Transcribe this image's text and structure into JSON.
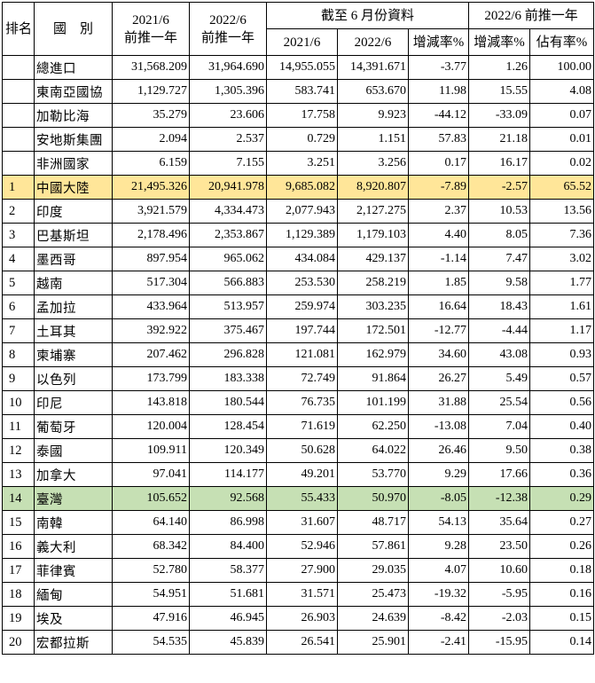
{
  "header": {
    "rank": "排名",
    "country": "國　別",
    "col_2021_line1": "2021/6",
    "col_2021_line2": "前推一年",
    "col_2022_line1": "2022/6",
    "col_2022_line2": "前推一年",
    "group_ytd": "截至 6 月份資料",
    "ytd_2021": "2021/6",
    "ytd_2022": "2022/6",
    "ytd_change": "增減率%",
    "group_trailing": "2022/6 前推一年",
    "trailing_change": "增減率%",
    "trailing_share": "佔有率%"
  },
  "rows": [
    {
      "rank": "",
      "country": "總進口",
      "v2021": "31,568.209",
      "v2022": "31,964.690",
      "ytd2021": "14,955.055",
      "ytd2022": "14,391.671",
      "ytdchg": "-3.77",
      "chg": "1.26",
      "share": "100.00",
      "hl": ""
    },
    {
      "rank": "",
      "country": "東南亞國協",
      "v2021": "1,129.727",
      "v2022": "1,305.396",
      "ytd2021": "583.741",
      "ytd2022": "653.670",
      "ytdchg": "11.98",
      "chg": "15.55",
      "share": "4.08",
      "hl": ""
    },
    {
      "rank": "",
      "country": "加勒比海",
      "v2021": "35.279",
      "v2022": "23.606",
      "ytd2021": "17.758",
      "ytd2022": "9.923",
      "ytdchg": "-44.12",
      "chg": "-33.09",
      "share": "0.07",
      "hl": ""
    },
    {
      "rank": "",
      "country": "安地斯集團",
      "v2021": "2.094",
      "v2022": "2.537",
      "ytd2021": "0.729",
      "ytd2022": "1.151",
      "ytdchg": "57.83",
      "chg": "21.18",
      "share": "0.01",
      "hl": ""
    },
    {
      "rank": "",
      "country": "非洲國家",
      "v2021": "6.159",
      "v2022": "7.155",
      "ytd2021": "3.251",
      "ytd2022": "3.256",
      "ytdchg": "0.17",
      "chg": "16.17",
      "share": "0.02",
      "hl": ""
    },
    {
      "rank": "1",
      "country": "中國大陸",
      "v2021": "21,495.326",
      "v2022": "20,941.978",
      "ytd2021": "9,685.082",
      "ytd2022": "8,920.807",
      "ytdchg": "-7.89",
      "chg": "-2.57",
      "share": "65.52",
      "hl": "china"
    },
    {
      "rank": "2",
      "country": "印度",
      "v2021": "3,921.579",
      "v2022": "4,334.473",
      "ytd2021": "2,077.943",
      "ytd2022": "2,127.275",
      "ytdchg": "2.37",
      "chg": "10.53",
      "share": "13.56",
      "hl": ""
    },
    {
      "rank": "3",
      "country": "巴基斯坦",
      "v2021": "2,178.496",
      "v2022": "2,353.867",
      "ytd2021": "1,129.389",
      "ytd2022": "1,179.103",
      "ytdchg": "4.40",
      "chg": "8.05",
      "share": "7.36",
      "hl": ""
    },
    {
      "rank": "4",
      "country": "墨西哥",
      "v2021": "897.954",
      "v2022": "965.062",
      "ytd2021": "434.084",
      "ytd2022": "429.137",
      "ytdchg": "-1.14",
      "chg": "7.47",
      "share": "3.02",
      "hl": ""
    },
    {
      "rank": "5",
      "country": "越南",
      "v2021": "517.304",
      "v2022": "566.883",
      "ytd2021": "253.530",
      "ytd2022": "258.219",
      "ytdchg": "1.85",
      "chg": "9.58",
      "share": "1.77",
      "hl": ""
    },
    {
      "rank": "6",
      "country": "孟加拉",
      "v2021": "433.964",
      "v2022": "513.957",
      "ytd2021": "259.974",
      "ytd2022": "303.235",
      "ytdchg": "16.64",
      "chg": "18.43",
      "share": "1.61",
      "hl": ""
    },
    {
      "rank": "7",
      "country": "土耳其",
      "v2021": "392.922",
      "v2022": "375.467",
      "ytd2021": "197.744",
      "ytd2022": "172.501",
      "ytdchg": "-12.77",
      "chg": "-4.44",
      "share": "1.17",
      "hl": ""
    },
    {
      "rank": "8",
      "country": "柬埔寨",
      "v2021": "207.462",
      "v2022": "296.828",
      "ytd2021": "121.081",
      "ytd2022": "162.979",
      "ytdchg": "34.60",
      "chg": "43.08",
      "share": "0.93",
      "hl": ""
    },
    {
      "rank": "9",
      "country": "以色列",
      "v2021": "173.799",
      "v2022": "183.338",
      "ytd2021": "72.749",
      "ytd2022": "91.864",
      "ytdchg": "26.27",
      "chg": "5.49",
      "share": "0.57",
      "hl": ""
    },
    {
      "rank": "10",
      "country": "印尼",
      "v2021": "143.818",
      "v2022": "180.544",
      "ytd2021": "76.735",
      "ytd2022": "101.199",
      "ytdchg": "31.88",
      "chg": "25.54",
      "share": "0.56",
      "hl": ""
    },
    {
      "rank": "11",
      "country": "葡萄牙",
      "v2021": "120.004",
      "v2022": "128.454",
      "ytd2021": "71.619",
      "ytd2022": "62.250",
      "ytdchg": "-13.08",
      "chg": "7.04",
      "share": "0.40",
      "hl": ""
    },
    {
      "rank": "12",
      "country": "泰國",
      "v2021": "109.911",
      "v2022": "120.349",
      "ytd2021": "50.628",
      "ytd2022": "64.022",
      "ytdchg": "26.46",
      "chg": "9.50",
      "share": "0.38",
      "hl": ""
    },
    {
      "rank": "13",
      "country": "加拿大",
      "v2021": "97.041",
      "v2022": "114.177",
      "ytd2021": "49.201",
      "ytd2022": "53.770",
      "ytdchg": "9.29",
      "chg": "17.66",
      "share": "0.36",
      "hl": ""
    },
    {
      "rank": "14",
      "country": "臺灣",
      "v2021": "105.652",
      "v2022": "92.568",
      "ytd2021": "55.433",
      "ytd2022": "50.970",
      "ytdchg": "-8.05",
      "chg": "-12.38",
      "share": "0.29",
      "hl": "taiwan"
    },
    {
      "rank": "15",
      "country": "南韓",
      "v2021": "64.140",
      "v2022": "86.998",
      "ytd2021": "31.607",
      "ytd2022": "48.717",
      "ytdchg": "54.13",
      "chg": "35.64",
      "share": "0.27",
      "hl": ""
    },
    {
      "rank": "16",
      "country": "義大利",
      "v2021": "68.342",
      "v2022": "84.400",
      "ytd2021": "52.946",
      "ytd2022": "57.861",
      "ytdchg": "9.28",
      "chg": "23.50",
      "share": "0.26",
      "hl": ""
    },
    {
      "rank": "17",
      "country": "菲律賓",
      "v2021": "52.780",
      "v2022": "58.377",
      "ytd2021": "27.900",
      "ytd2022": "29.035",
      "ytdchg": "4.07",
      "chg": "10.60",
      "share": "0.18",
      "hl": ""
    },
    {
      "rank": "18",
      "country": "緬甸",
      "v2021": "54.951",
      "v2022": "51.681",
      "ytd2021": "31.571",
      "ytd2022": "25.473",
      "ytdchg": "-19.32",
      "chg": "-5.95",
      "share": "0.16",
      "hl": ""
    },
    {
      "rank": "19",
      "country": "埃及",
      "v2021": "47.916",
      "v2022": "46.945",
      "ytd2021": "26.903",
      "ytd2022": "24.639",
      "ytdchg": "-8.42",
      "chg": "-2.03",
      "share": "0.15",
      "hl": ""
    },
    {
      "rank": "20",
      "country": "宏都拉斯",
      "v2021": "54.535",
      "v2022": "45.839",
      "ytd2021": "26.541",
      "ytd2022": "25.901",
      "ytdchg": "-2.41",
      "chg": "-15.95",
      "share": "0.14",
      "hl": ""
    }
  ]
}
